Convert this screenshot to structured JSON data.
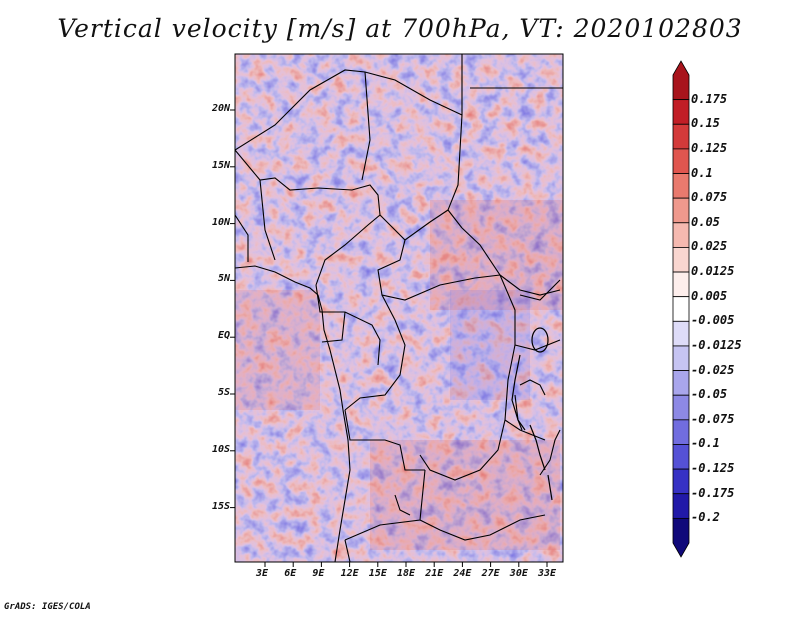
{
  "title": "Vertical velocity [m/s] at 700hPa, VT: 2020102803",
  "credit": "GrADS: IGES/COLA",
  "map": {
    "variable": "Vertical velocity",
    "units": "m/s",
    "level": "700hPa",
    "valid_time": "2020102803",
    "lat_ticks": [
      "20N",
      "15N",
      "10N",
      "5N",
      "EQ",
      "5S",
      "10S",
      "15S"
    ],
    "lon_ticks": [
      "3E",
      "6E",
      "9E",
      "12E",
      "15E",
      "18E",
      "21E",
      "24E",
      "27E",
      "30E",
      "33E"
    ]
  },
  "colorbar": {
    "labels": [
      "0.175",
      "0.15",
      "0.125",
      "0.1",
      "0.075",
      "0.05",
      "0.025",
      "0.0125",
      "0.005",
      "-0.005",
      "-0.0125",
      "-0.025",
      "-0.05",
      "-0.075",
      "-0.1",
      "-0.125",
      "-0.175",
      "-0.2"
    ],
    "colors": [
      "#a8141c",
      "#c11e26",
      "#d33a3a",
      "#e0564f",
      "#e97a6e",
      "#ef998d",
      "#f5b9b0",
      "#f9d6d0",
      "#fdeeec",
      "#ffffff",
      "#dedcf8",
      "#c6c4f2",
      "#a9a6ec",
      "#8d89e5",
      "#716ddf",
      "#5551d6",
      "#3631c4",
      "#2119a8",
      "#10097a"
    ]
  }
}
